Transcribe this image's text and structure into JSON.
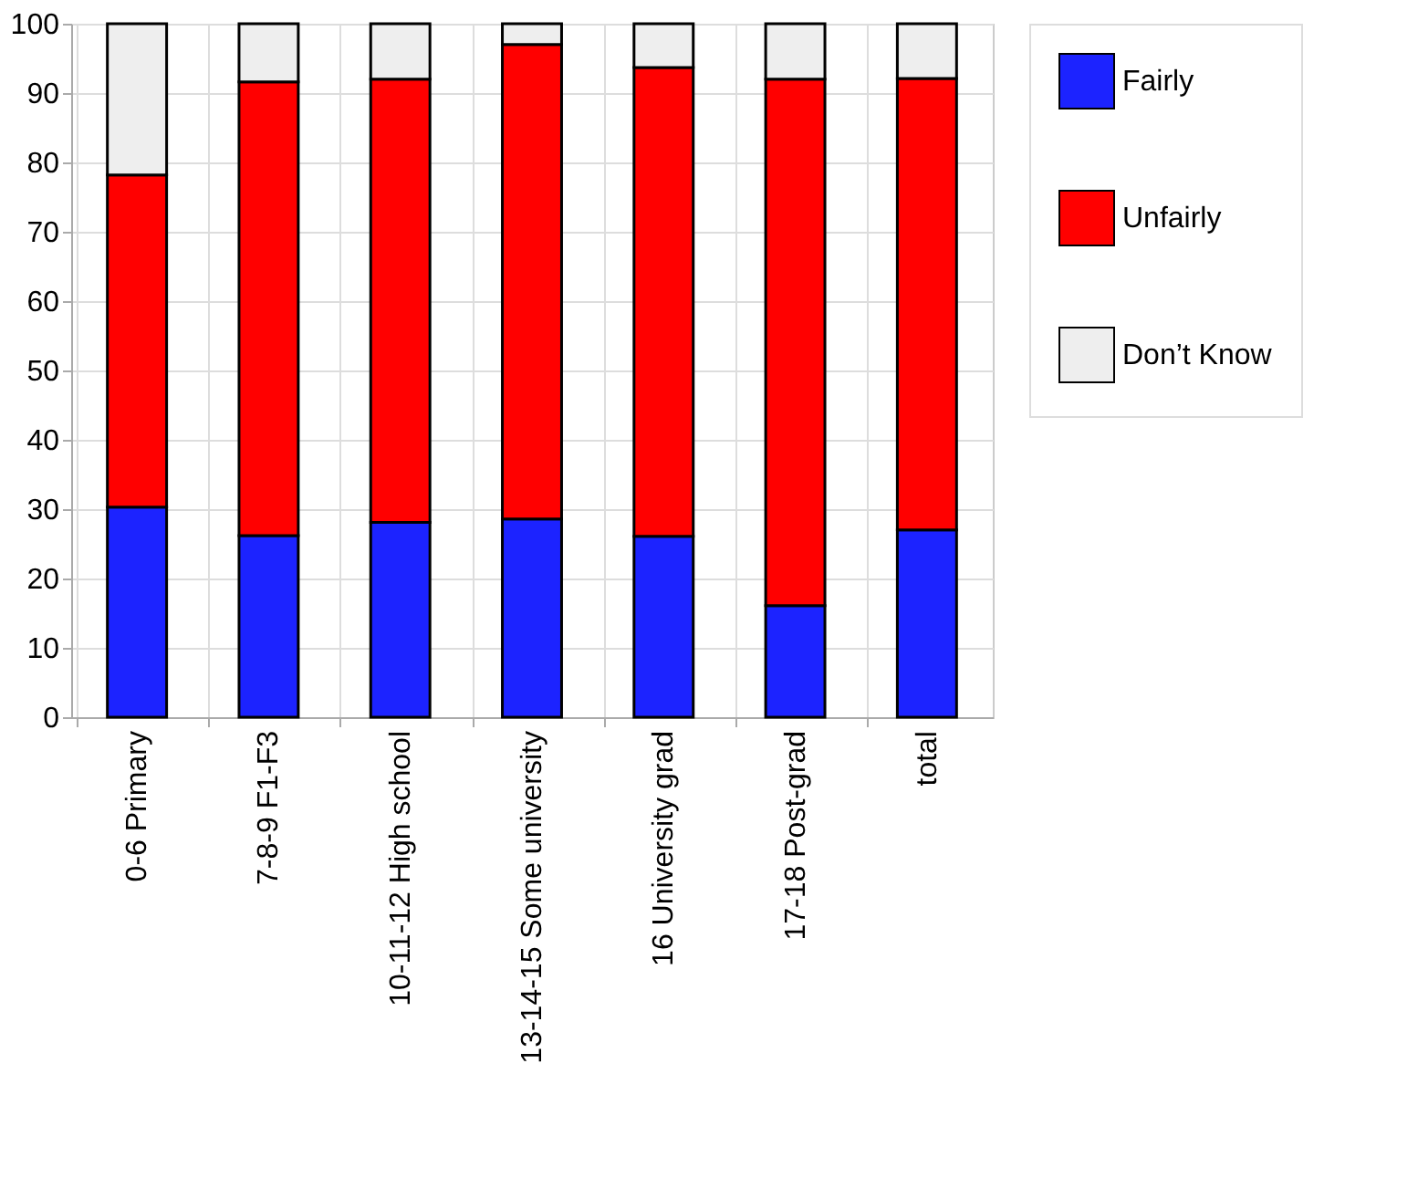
{
  "chart_data": {
    "type": "bar",
    "stacked": true,
    "categories": [
      "0-6 Primary",
      "7-8-9 F1-F3",
      "10-11-12 High school",
      "13-14-15 Some university",
      "16 University grad",
      "17-18 Post-grad",
      "total"
    ],
    "series": [
      {
        "name": "Fairly",
        "color": "#1c23ff",
        "values": [
          30.3,
          26.2,
          28.1,
          28.6,
          26.1,
          16.1,
          27.0
        ]
      },
      {
        "name": "Unfairly",
        "color": "#ff0000",
        "values": [
          47.9,
          65.4,
          63.9,
          68.4,
          67.6,
          75.9,
          65.1
        ]
      },
      {
        "name": "Don’t Know",
        "color": "#eeeeee",
        "values": [
          21.8,
          8.4,
          8.0,
          3.0,
          6.3,
          8.0,
          7.9
        ]
      }
    ],
    "ylim": [
      0,
      100
    ],
    "yticks": [
      0,
      10,
      20,
      30,
      40,
      50,
      60,
      70,
      80,
      90,
      100
    ],
    "grid": true,
    "legend": "top right"
  }
}
